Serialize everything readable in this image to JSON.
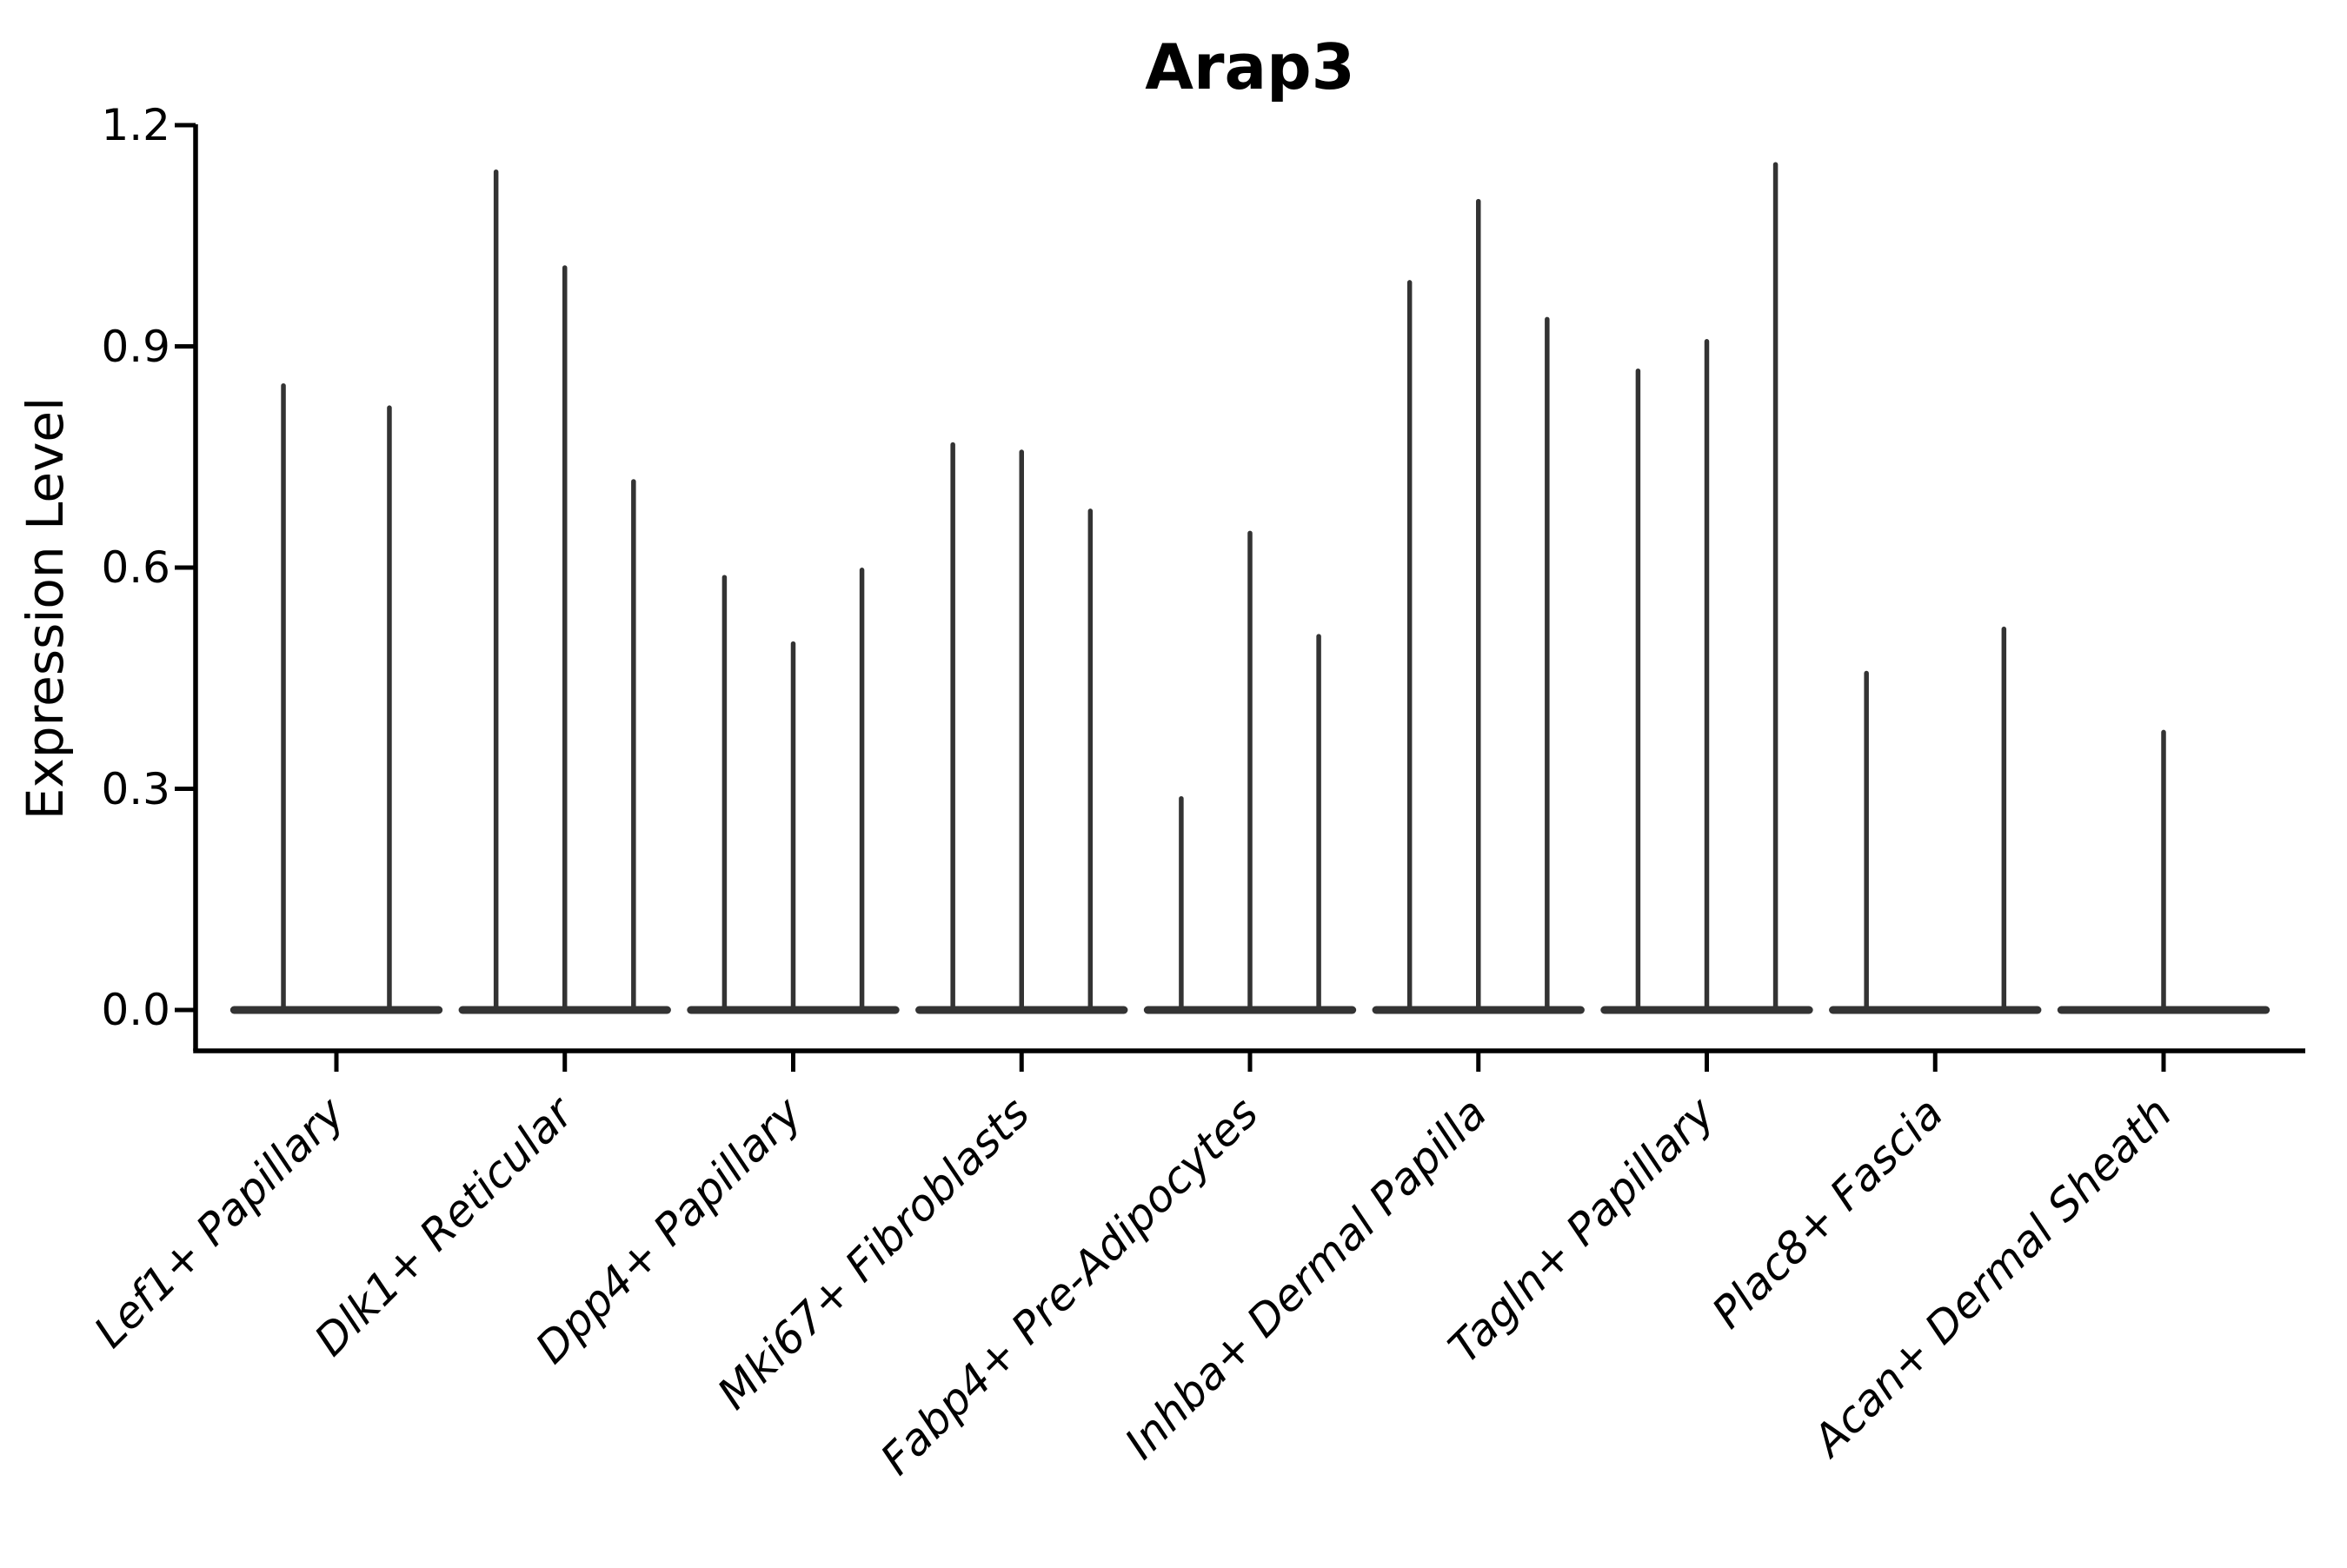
{
  "chart_data": {
    "type": "violin",
    "title": "Arap3",
    "xlabel": "",
    "ylabel": "Expression Level",
    "ylim": [
      -0.055,
      1.2
    ],
    "yticks": [
      0.0,
      0.3,
      0.6,
      0.9,
      1.2
    ],
    "ytick_labels": [
      "0.0",
      "0.3",
      "0.6",
      "0.9",
      "1.2"
    ],
    "grid": false,
    "legend": "none",
    "categories": [
      "Lef1+ Papillary",
      "Dlk1+ Reticular",
      "Dpp4+ Papillary",
      "Mki67+ Fibroblasts",
      "Fabp4+ Pre-Adipocytes",
      "Inhba+ Dermal Papilla",
      "Tagln+ Papillary",
      "Plac8+ Fascia",
      "Acan+ Dermal Sheath"
    ],
    "groups": [
      {
        "category": "Lef1+ Papillary",
        "violins": [
          {
            "offset": -0.232,
            "peak": 0.85
          },
          {
            "offset": 0.232,
            "peak": 0.82
          }
        ]
      },
      {
        "category": "Dlk1+ Reticular",
        "violins": [
          {
            "offset": -0.301,
            "peak": 1.14
          },
          {
            "offset": 0.0,
            "peak": 1.01
          },
          {
            "offset": 0.301,
            "peak": 0.72
          }
        ]
      },
      {
        "category": "Dpp4+ Papillary",
        "violins": [
          {
            "offset": -0.301,
            "peak": 0.59
          },
          {
            "offset": 0.0,
            "peak": 0.5
          },
          {
            "offset": 0.301,
            "peak": 0.6
          }
        ]
      },
      {
        "category": "Mki67+ Fibroblasts",
        "violins": [
          {
            "offset": -0.301,
            "peak": 0.77
          },
          {
            "offset": 0.0,
            "peak": 0.76
          },
          {
            "offset": 0.301,
            "peak": 0.68
          }
        ]
      },
      {
        "category": "Fabp4+ Pre-Adipocytes",
        "violins": [
          {
            "offset": -0.301,
            "peak": 0.29
          },
          {
            "offset": 0.0,
            "peak": 0.65
          },
          {
            "offset": 0.301,
            "peak": 0.51
          }
        ]
      },
      {
        "category": "Inhba+ Dermal Papilla",
        "violins": [
          {
            "offset": -0.301,
            "peak": 0.99
          },
          {
            "offset": 0.0,
            "peak": 1.1
          },
          {
            "offset": 0.301,
            "peak": 0.94
          }
        ]
      },
      {
        "category": "Tagln+ Papillary",
        "violins": [
          {
            "offset": -0.301,
            "peak": 0.87
          },
          {
            "offset": 0.0,
            "peak": 0.91
          },
          {
            "offset": 0.301,
            "peak": 1.15
          }
        ]
      },
      {
        "category": "Plac8+ Fascia",
        "violins": [
          {
            "offset": -0.301,
            "peak": 0.46
          },
          {
            "offset": 0.301,
            "peak": 0.52
          }
        ]
      },
      {
        "category": "Acan+ Dermal Sheath",
        "violins": [
          {
            "offset": 0.0,
            "peak": 0.38
          }
        ]
      }
    ],
    "base_halfwidth": 0.465,
    "colors": {
      "violin": "#333333",
      "axis": "#000000",
      "background": "#ffffff"
    }
  }
}
